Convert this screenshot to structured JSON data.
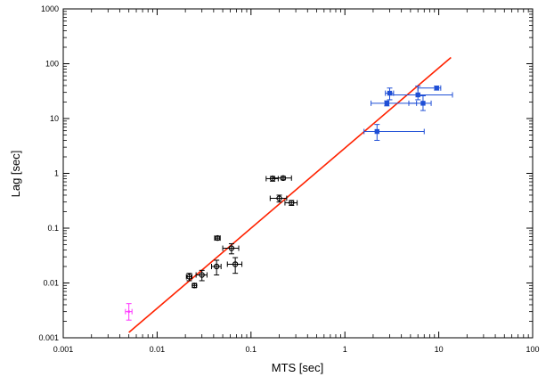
{
  "chart_data": {
    "type": "scatter",
    "xlabel": "MTS [sec]",
    "ylabel": "Lag [sec]",
    "xscale": "log",
    "yscale": "log",
    "xlim": [
      0.001,
      100
    ],
    "ylim": [
      0.001,
      1000
    ],
    "x_ticks": [
      "0.001",
      "0.01",
      "0.1",
      "1",
      "10",
      "100"
    ],
    "y_ticks": [
      "0.001",
      "0.01",
      "0.1",
      "1",
      "10",
      "100",
      "1000"
    ],
    "grid": false,
    "legend": "none",
    "series": [
      {
        "color": "#000000",
        "marker": "circle",
        "points": [
          {
            "x": 0.022,
            "y": 0.013,
            "xerr": [
              0.0015,
              0.0015
            ],
            "yerr": [
              0.002,
              0.002
            ]
          },
          {
            "x": 0.025,
            "y": 0.009,
            "xerr": [
              0.0012,
              0.0012
            ],
            "yerr": [
              0.0007,
              0.0007
            ]
          },
          {
            "x": 0.03,
            "y": 0.014,
            "xerr": [
              0.004,
              0.004
            ],
            "yerr": [
              0.003,
              0.003
            ]
          },
          {
            "x": 0.043,
            "y": 0.02,
            "xerr": [
              0.005,
              0.005
            ],
            "yerr": [
              0.006,
              0.006
            ]
          },
          {
            "x": 0.044,
            "y": 0.066,
            "xerr": [
              0.003,
              0.003
            ],
            "yerr": [
              0.005,
              0.005
            ]
          },
          {
            "x": 0.062,
            "y": 0.043,
            "xerr": [
              0.012,
              0.012
            ],
            "yerr": [
              0.009,
              0.009
            ]
          },
          {
            "x": 0.068,
            "y": 0.022,
            "xerr": [
              0.012,
              0.012
            ],
            "yerr": [
              0.007,
              0.007
            ]
          },
          {
            "x": 0.17,
            "y": 0.8,
            "xerr": [
              0.025,
              0.025
            ],
            "yerr": [
              0.08,
              0.08
            ]
          },
          {
            "x": 0.2,
            "y": 0.35,
            "xerr": [
              0.04,
              0.04
            ],
            "yerr": [
              0.05,
              0.05
            ]
          },
          {
            "x": 0.22,
            "y": 0.82,
            "xerr": [
              0.05,
              0.05
            ],
            "yerr": [
              0.06,
              0.06
            ]
          },
          {
            "x": 0.27,
            "y": 0.29,
            "xerr": [
              0.04,
              0.04
            ],
            "yerr": [
              0.03,
              0.03
            ]
          }
        ]
      },
      {
        "color": "#1f4fd6",
        "marker": "square",
        "points": [
          {
            "x": 2.2,
            "y": 5.8,
            "xerr": [
              0.6,
              4.8
            ],
            "yerr": [
              1.8,
              2.0
            ]
          },
          {
            "x": 2.8,
            "y": 19.0,
            "xerr": [
              0.9,
              3.0
            ],
            "yerr": [
              2.0,
              2.0
            ]
          },
          {
            "x": 3.0,
            "y": 29.0,
            "xerr": [
              0.3,
              0.3
            ],
            "yerr": [
              7.0,
              7.0
            ]
          },
          {
            "x": 6.0,
            "y": 27.0,
            "xerr": [
              3.0,
              8.0
            ],
            "yerr": [
              5.0,
              12.0
            ]
          },
          {
            "x": 6.8,
            "y": 19.0,
            "xerr": [
              2.0,
              1.5
            ],
            "yerr": [
              5.0,
              7.0
            ]
          },
          {
            "x": 9.5,
            "y": 36.0,
            "xerr": [
              3.5,
              1.0
            ],
            "yerr": [
              3.0,
              3.0
            ]
          }
        ]
      },
      {
        "color": "#ff33ff",
        "marker": "cross",
        "points": [
          {
            "x": 0.005,
            "y": 0.003,
            "xerr": [
              0.0004,
              0.0004
            ],
            "yerr": [
              0.0009,
              0.0012
            ]
          }
        ]
      }
    ],
    "fit_line": {
      "color": "#ff2200",
      "points": [
        [
          0.005,
          0.00125
        ],
        [
          13.5,
          130
        ]
      ]
    }
  }
}
